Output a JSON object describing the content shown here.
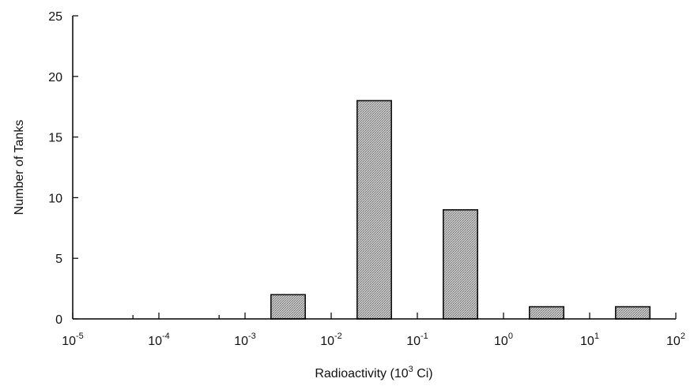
{
  "chart_data": {
    "type": "bar",
    "xscale": "log",
    "xlabel": "Radioactivity (10^3 Ci)",
    "xlabel_parts": {
      "base": "Radioactivity (10",
      "exp": "3",
      "unit": " Ci)"
    },
    "ylabel": "Number of Tanks",
    "xlim": [
      1e-05,
      100
    ],
    "ylim": [
      0,
      25
    ],
    "x_ticks": [
      {
        "base": "10",
        "exp": "-5"
      },
      {
        "base": "10",
        "exp": "-4"
      },
      {
        "base": "10",
        "exp": "-3"
      },
      {
        "base": "10",
        "exp": "-2"
      },
      {
        "base": "10",
        "exp": "-1"
      },
      {
        "base": "10",
        "exp": "0"
      },
      {
        "base": "10",
        "exp": "1"
      },
      {
        "base": "10",
        "exp": "2"
      }
    ],
    "y_ticks": [
      "0",
      "5",
      "10",
      "15",
      "20",
      "25"
    ],
    "bars": [
      {
        "x_from": 0.002,
        "x_to": 0.005,
        "value": 2
      },
      {
        "x_from": 0.02,
        "x_to": 0.05,
        "value": 18
      },
      {
        "x_from": 0.2,
        "x_to": 0.5,
        "value": 9
      },
      {
        "x_from": 2,
        "x_to": 5,
        "value": 1
      },
      {
        "x_from": 20,
        "x_to": 50,
        "value": 1
      }
    ],
    "grid": false,
    "colors": {
      "bar_fill": "#b9b9b9",
      "bar_edge": "#111111",
      "axis": "#000000"
    }
  }
}
